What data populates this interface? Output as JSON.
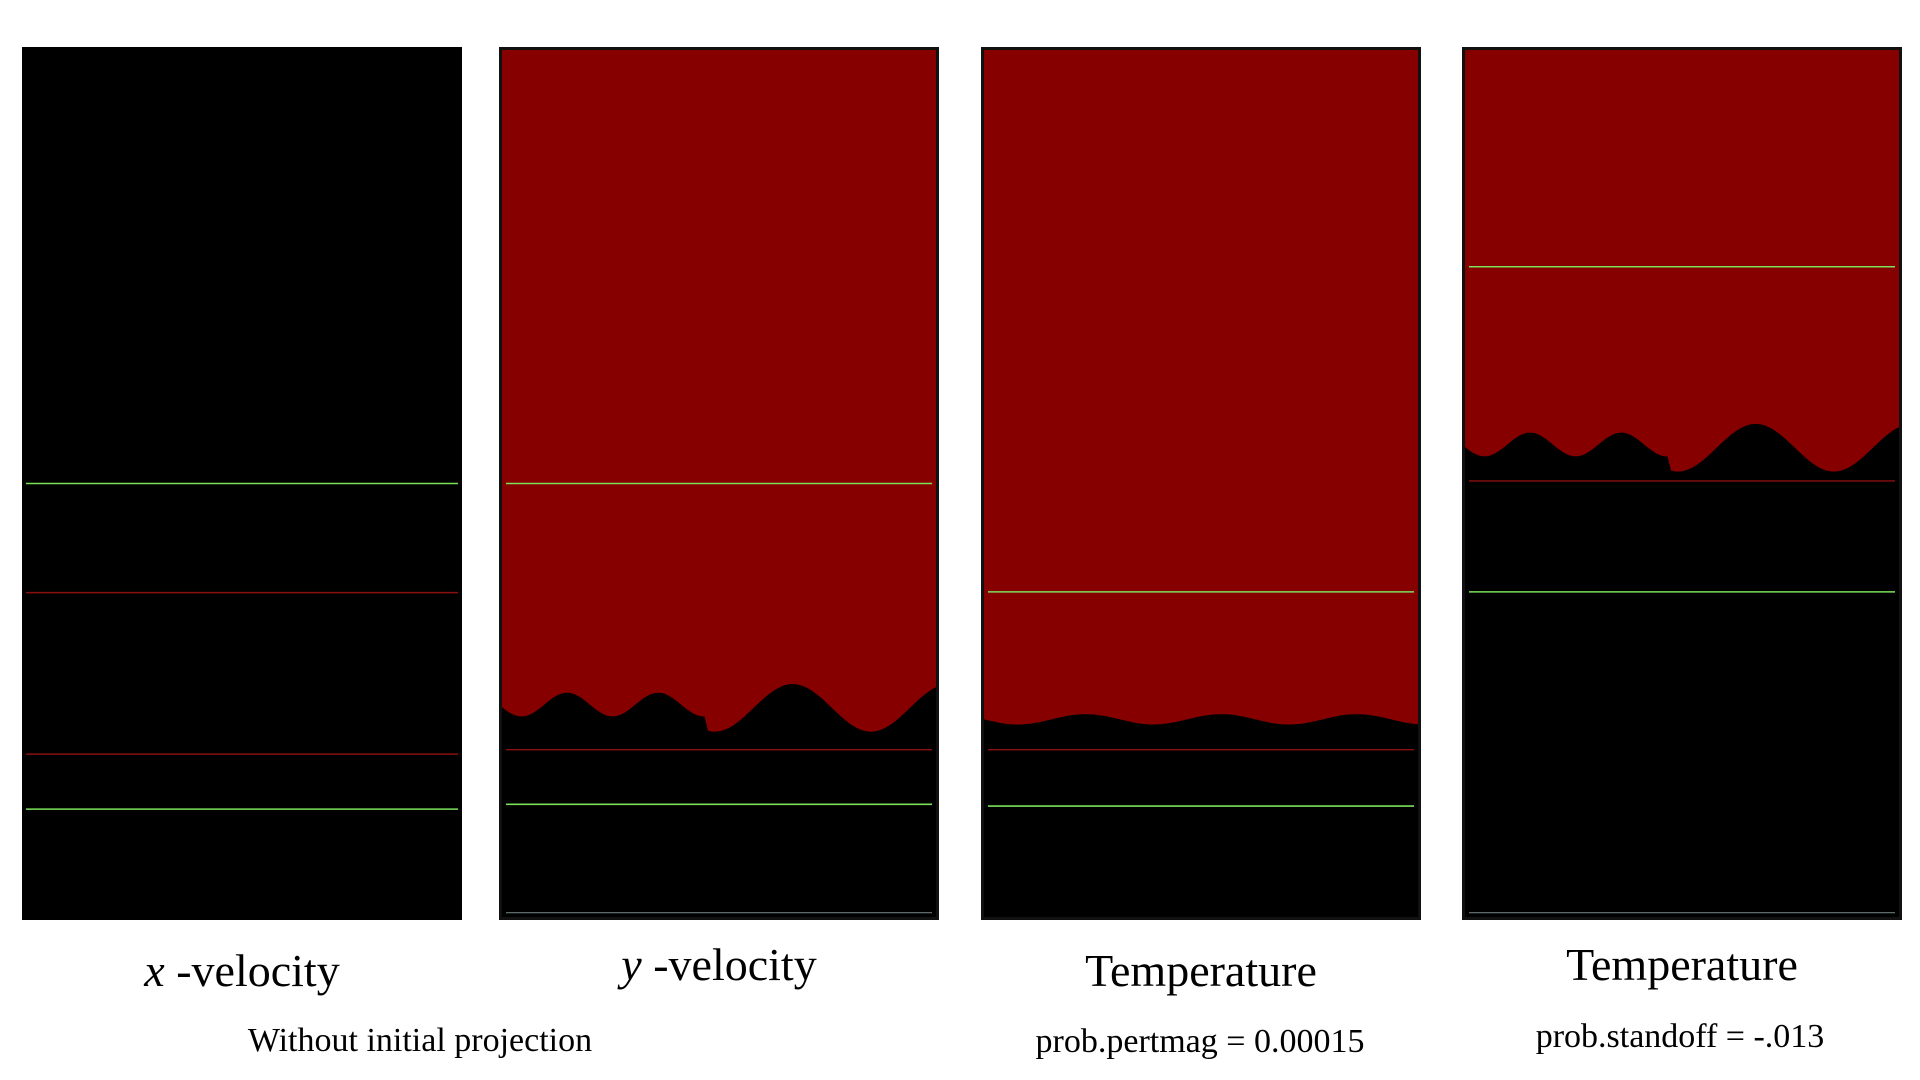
{
  "colors": {
    "background": "#000000",
    "hot": "#870000",
    "marker_green": "#7be05a",
    "marker_red": "#8a0f0f",
    "front_blue": "#0014e0"
  },
  "panels": [
    {
      "label_var": "x",
      "label_text": " -velocity",
      "field": "none",
      "green_lines": [
        0.5,
        0.873
      ],
      "red_lines": [
        0.625,
        0.81
      ]
    },
    {
      "label_var": "y",
      "label_text": " -velocity",
      "field": "wavy",
      "front": 0.77,
      "amplitude": 0.025,
      "green_lines": [
        0.5,
        0.87
      ],
      "red_lines": [
        0.807
      ],
      "gray_lines": [
        0.995
      ]
    },
    {
      "label_var": "",
      "label_text": "Temperature",
      "field": "mild",
      "front": 0.787,
      "amplitude": 0.006,
      "green_lines": [
        0.625,
        0.872
      ],
      "red_lines": [
        0.807
      ]
    },
    {
      "label_var": "",
      "label_text": "Temperature",
      "field": "wavy",
      "front": 0.47,
      "amplitude": 0.025,
      "green_lines": [
        0.25,
        0.625
      ],
      "red_lines": [
        0.497
      ],
      "gray_lines": [
        0.995
      ]
    }
  ],
  "captions": {
    "projection": "Without initial projection",
    "pertmag": "prob.pertmag = 0.00015",
    "standoff": "prob.standoff = -.013"
  }
}
